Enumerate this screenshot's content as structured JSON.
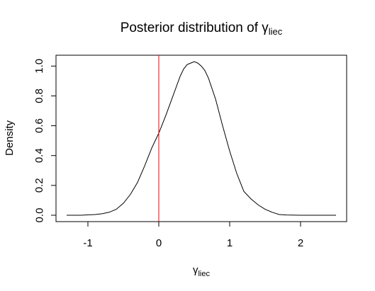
{
  "chart_data": {
    "type": "line",
    "title_main": "Posterior distribution of γ",
    "title_sub": "liec",
    "xlabel_main": "γ",
    "xlabel_sub": "liec",
    "ylabel": "Density",
    "xlim": [
      -1.3,
      2.5
    ],
    "ylim": [
      0.0,
      1.03
    ],
    "x_ticks": [
      -1,
      0,
      1,
      2
    ],
    "x_tick_labels": [
      "-1",
      "0",
      "1",
      "2"
    ],
    "y_ticks": [
      0.0,
      0.2,
      0.4,
      0.6,
      0.8,
      1.0
    ],
    "y_tick_labels": [
      "0.0",
      "0.2",
      "0.4",
      "0.6",
      "0.8",
      "1.0"
    ],
    "grid": false,
    "reference_line": {
      "x": 0,
      "color": "#ff0000"
    },
    "series": [
      {
        "color": "#000000",
        "x": [
          -1.3,
          -1.1,
          -0.9,
          -0.8,
          -0.7,
          -0.6,
          -0.5,
          -0.4,
          -0.3,
          -0.2,
          -0.1,
          0.0,
          0.1,
          0.2,
          0.3,
          0.35,
          0.4,
          0.45,
          0.5,
          0.55,
          0.6,
          0.65,
          0.7,
          0.8,
          0.9,
          1.0,
          1.1,
          1.2,
          1.3,
          1.4,
          1.5,
          1.6,
          1.7,
          1.8,
          2.0,
          2.2,
          2.5
        ],
        "y": [
          0.0,
          0.0,
          0.005,
          0.01,
          0.02,
          0.04,
          0.08,
          0.14,
          0.22,
          0.33,
          0.45,
          0.55,
          0.67,
          0.8,
          0.93,
          0.98,
          1.01,
          1.02,
          1.03,
          1.02,
          1.0,
          0.97,
          0.92,
          0.78,
          0.6,
          0.43,
          0.28,
          0.16,
          0.11,
          0.07,
          0.04,
          0.02,
          0.005,
          0.002,
          0.0,
          0.0,
          0.0
        ]
      }
    ]
  }
}
